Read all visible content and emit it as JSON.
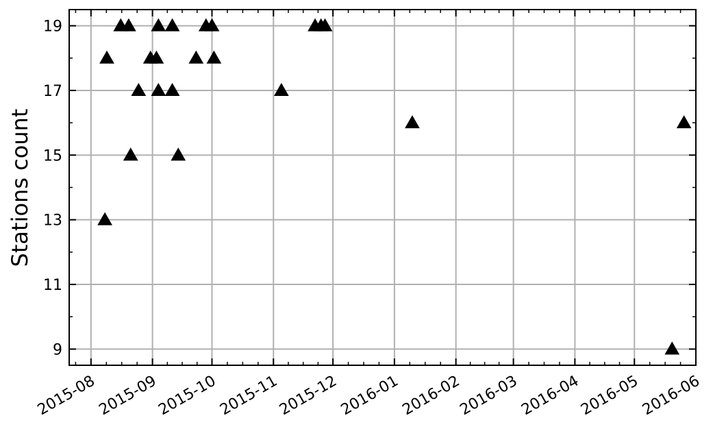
{
  "chart_data": {
    "type": "scatter",
    "ylabel": "Stations count",
    "xlabel": "",
    "title": "",
    "marker": "triangle-up",
    "marker_color": "#000000",
    "grid": true,
    "grid_color": "#b0b0b0",
    "x_axis_type": "date",
    "xlim": [
      "2015-07-21",
      "2016-06-01"
    ],
    "ylim": [
      8.5,
      19.5
    ],
    "x_ticks": [
      {
        "date": "2015-08-01",
        "label": "2015-08"
      },
      {
        "date": "2015-09-01",
        "label": "2015-09"
      },
      {
        "date": "2015-10-01",
        "label": "2015-10"
      },
      {
        "date": "2015-11-01",
        "label": "2015-11"
      },
      {
        "date": "2015-12-01",
        "label": "2015-12"
      },
      {
        "date": "2016-01-01",
        "label": "2016-01"
      },
      {
        "date": "2016-02-01",
        "label": "2016-02"
      },
      {
        "date": "2016-03-01",
        "label": "2016-03"
      },
      {
        "date": "2016-04-01",
        "label": "2016-04"
      },
      {
        "date": "2016-05-01",
        "label": "2016-05"
      },
      {
        "date": "2016-06-01",
        "label": "2016-06"
      }
    ],
    "y_ticks": [
      9,
      11,
      13,
      15,
      17,
      19
    ],
    "y_minor_ticks": [
      10,
      12,
      14,
      16,
      18
    ],
    "points": [
      {
        "x": "2015-08-08",
        "y": 13
      },
      {
        "x": "2015-08-09",
        "y": 18
      },
      {
        "x": "2015-08-16",
        "y": 19
      },
      {
        "x": "2015-08-20",
        "y": 19
      },
      {
        "x": "2015-08-21",
        "y": 15
      },
      {
        "x": "2015-08-25",
        "y": 17
      },
      {
        "x": "2015-08-31",
        "y": 18
      },
      {
        "x": "2015-09-03",
        "y": 18
      },
      {
        "x": "2015-09-04",
        "y": 19
      },
      {
        "x": "2015-09-04",
        "y": 17
      },
      {
        "x": "2015-09-11",
        "y": 19
      },
      {
        "x": "2015-09-11",
        "y": 17
      },
      {
        "x": "2015-09-14",
        "y": 15
      },
      {
        "x": "2015-09-23",
        "y": 18
      },
      {
        "x": "2015-09-28",
        "y": 19
      },
      {
        "x": "2015-10-01",
        "y": 19
      },
      {
        "x": "2015-10-02",
        "y": 18
      },
      {
        "x": "2015-11-05",
        "y": 17
      },
      {
        "x": "2015-11-22",
        "y": 19
      },
      {
        "x": "2015-11-25",
        "y": 19
      },
      {
        "x": "2015-11-27",
        "y": 19
      },
      {
        "x": "2016-01-10",
        "y": 16
      },
      {
        "x": "2016-05-20",
        "y": 9
      },
      {
        "x": "2016-05-26",
        "y": 16
      }
    ]
  }
}
